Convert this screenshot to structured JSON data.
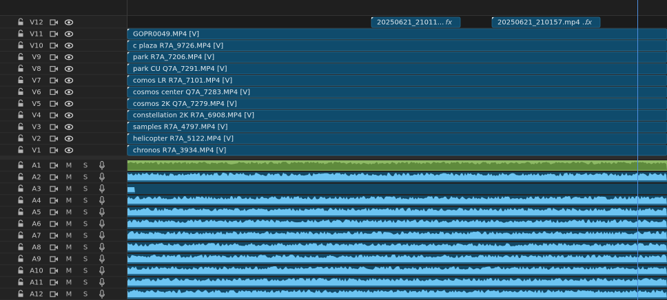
{
  "video_tracks": [
    {
      "name": "V12",
      "clips": [
        {
          "label": "20250621_21011...",
          "fx": "fx"
        },
        {
          "label": "20250621_210157.mp4 ...",
          "fx": "fx"
        }
      ]
    },
    {
      "name": "V11",
      "clips": [
        {
          "label": "GOPR0049.MP4 [V]"
        }
      ]
    },
    {
      "name": "V10",
      "clips": [
        {
          "label": "c plaza R7A_9726.MP4 [V]"
        }
      ]
    },
    {
      "name": "V9",
      "clips": [
        {
          "label": "park R7A_7206.MP4 [V]"
        }
      ]
    },
    {
      "name": "V8",
      "clips": [
        {
          "label": "park CU Q7A_7291.MP4 [V]"
        }
      ]
    },
    {
      "name": "V7",
      "clips": [
        {
          "label": "comos LR R7A_7101.MP4 [V]"
        }
      ]
    },
    {
      "name": "V6",
      "clips": [
        {
          "label": "cosmos center Q7A_7283.MP4 [V]"
        }
      ]
    },
    {
      "name": "V5",
      "clips": [
        {
          "label": "cosmos 2K Q7A_7279.MP4 [V]"
        }
      ]
    },
    {
      "name": "V4",
      "clips": [
        {
          "label": "constellation 2K R7A_6908.MP4 [V]"
        }
      ]
    },
    {
      "name": "V3",
      "clips": [
        {
          "label": "samples R7A_4797.MP4 [V]"
        }
      ]
    },
    {
      "name": "V2",
      "clips": [
        {
          "label": "helicopter R7A_5122.MP4 [V]"
        }
      ]
    },
    {
      "name": "V1",
      "clips": [
        {
          "label": "chronos R7A_3934.MP4 [V]"
        }
      ]
    }
  ],
  "audio_tracks": [
    {
      "name": "A1"
    },
    {
      "name": "A2"
    },
    {
      "name": "A3"
    },
    {
      "name": "A4"
    },
    {
      "name": "A5"
    },
    {
      "name": "A6"
    },
    {
      "name": "A7"
    },
    {
      "name": "A8"
    },
    {
      "name": "A9"
    },
    {
      "name": "A10"
    },
    {
      "name": "A11"
    },
    {
      "name": "A12"
    }
  ],
  "mute": "M",
  "solo": "S"
}
